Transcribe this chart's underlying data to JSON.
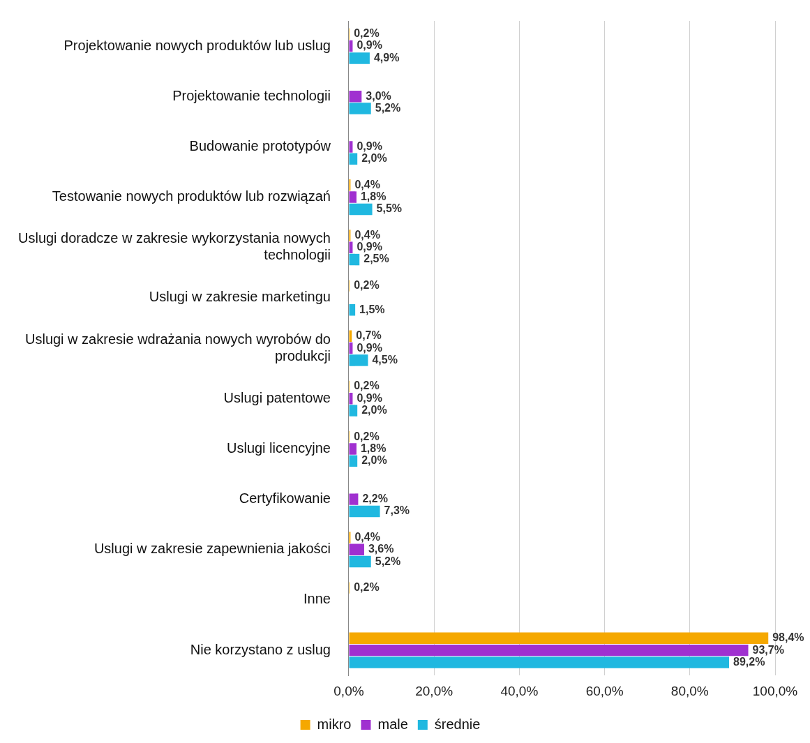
{
  "chart_data": {
    "type": "bar",
    "orientation": "horizontal",
    "categories": [
      "Projektowanie nowych produktów lub uslug",
      "Projektowanie technologii",
      "Budowanie prototypów",
      "Testowanie nowych produktów lub rozwiązań",
      "Uslugi doradcze w zakresie wykorzystania nowych technologii",
      "Uslugi w zakresie marketingu",
      "Uslugi w zakresie wdrażania nowych wyrobów do produkcji",
      "Uslugi patentowe",
      "Uslugi licencyjne",
      "Certyfikowanie",
      "Uslugi w zakresie zapewnienia jakości",
      "Inne",
      "Nie korzystano z uslug"
    ],
    "series": [
      {
        "name": "mikro",
        "color": "#f5a800",
        "values": [
          0.2,
          null,
          null,
          0.4,
          0.4,
          0.2,
          0.7,
          0.2,
          0.2,
          null,
          0.4,
          0.2,
          98.4
        ],
        "value_labels": [
          "0,2%",
          null,
          null,
          "0,4%",
          "0,4%",
          "0,2%",
          "0,7%",
          "0,2%",
          "0,2%",
          null,
          "0,4%",
          "0,2%",
          "98,4%"
        ]
      },
      {
        "name": "male",
        "color": "#a030d0",
        "values": [
          0.9,
          3.0,
          0.9,
          1.8,
          0.9,
          null,
          0.9,
          0.9,
          1.8,
          2.2,
          3.6,
          null,
          93.7
        ],
        "value_labels": [
          "0,9%",
          "3,0%",
          "0,9%",
          "1,8%",
          "0,9%",
          null,
          "0,9%",
          "0,9%",
          "1,8%",
          "2,2%",
          "3,6%",
          null,
          "93,7%"
        ]
      },
      {
        "name": "średnie",
        "color": "#20b8e0",
        "values": [
          4.9,
          5.2,
          2.0,
          5.5,
          2.5,
          1.5,
          4.5,
          2.0,
          2.0,
          7.3,
          5.2,
          null,
          89.2
        ],
        "value_labels": [
          "4,9%",
          "5,2%",
          "2,0%",
          "5,5%",
          "2,5%",
          "1,5%",
          "4,5%",
          "2,0%",
          "2,0%",
          "7,3%",
          "5,2%",
          null,
          "89,2%"
        ]
      }
    ],
    "xlim": [
      0,
      100
    ],
    "xticks": [
      {
        "value": 0,
        "label": "0,0%"
      },
      {
        "value": 20,
        "label": "20,0%"
      },
      {
        "value": 40,
        "label": "40,0%"
      },
      {
        "value": 60,
        "label": "60,0%"
      },
      {
        "value": 80,
        "label": "80,0%"
      },
      {
        "value": 100,
        "label": "100,0%"
      }
    ],
    "grid": "x",
    "legend": "bottom"
  }
}
